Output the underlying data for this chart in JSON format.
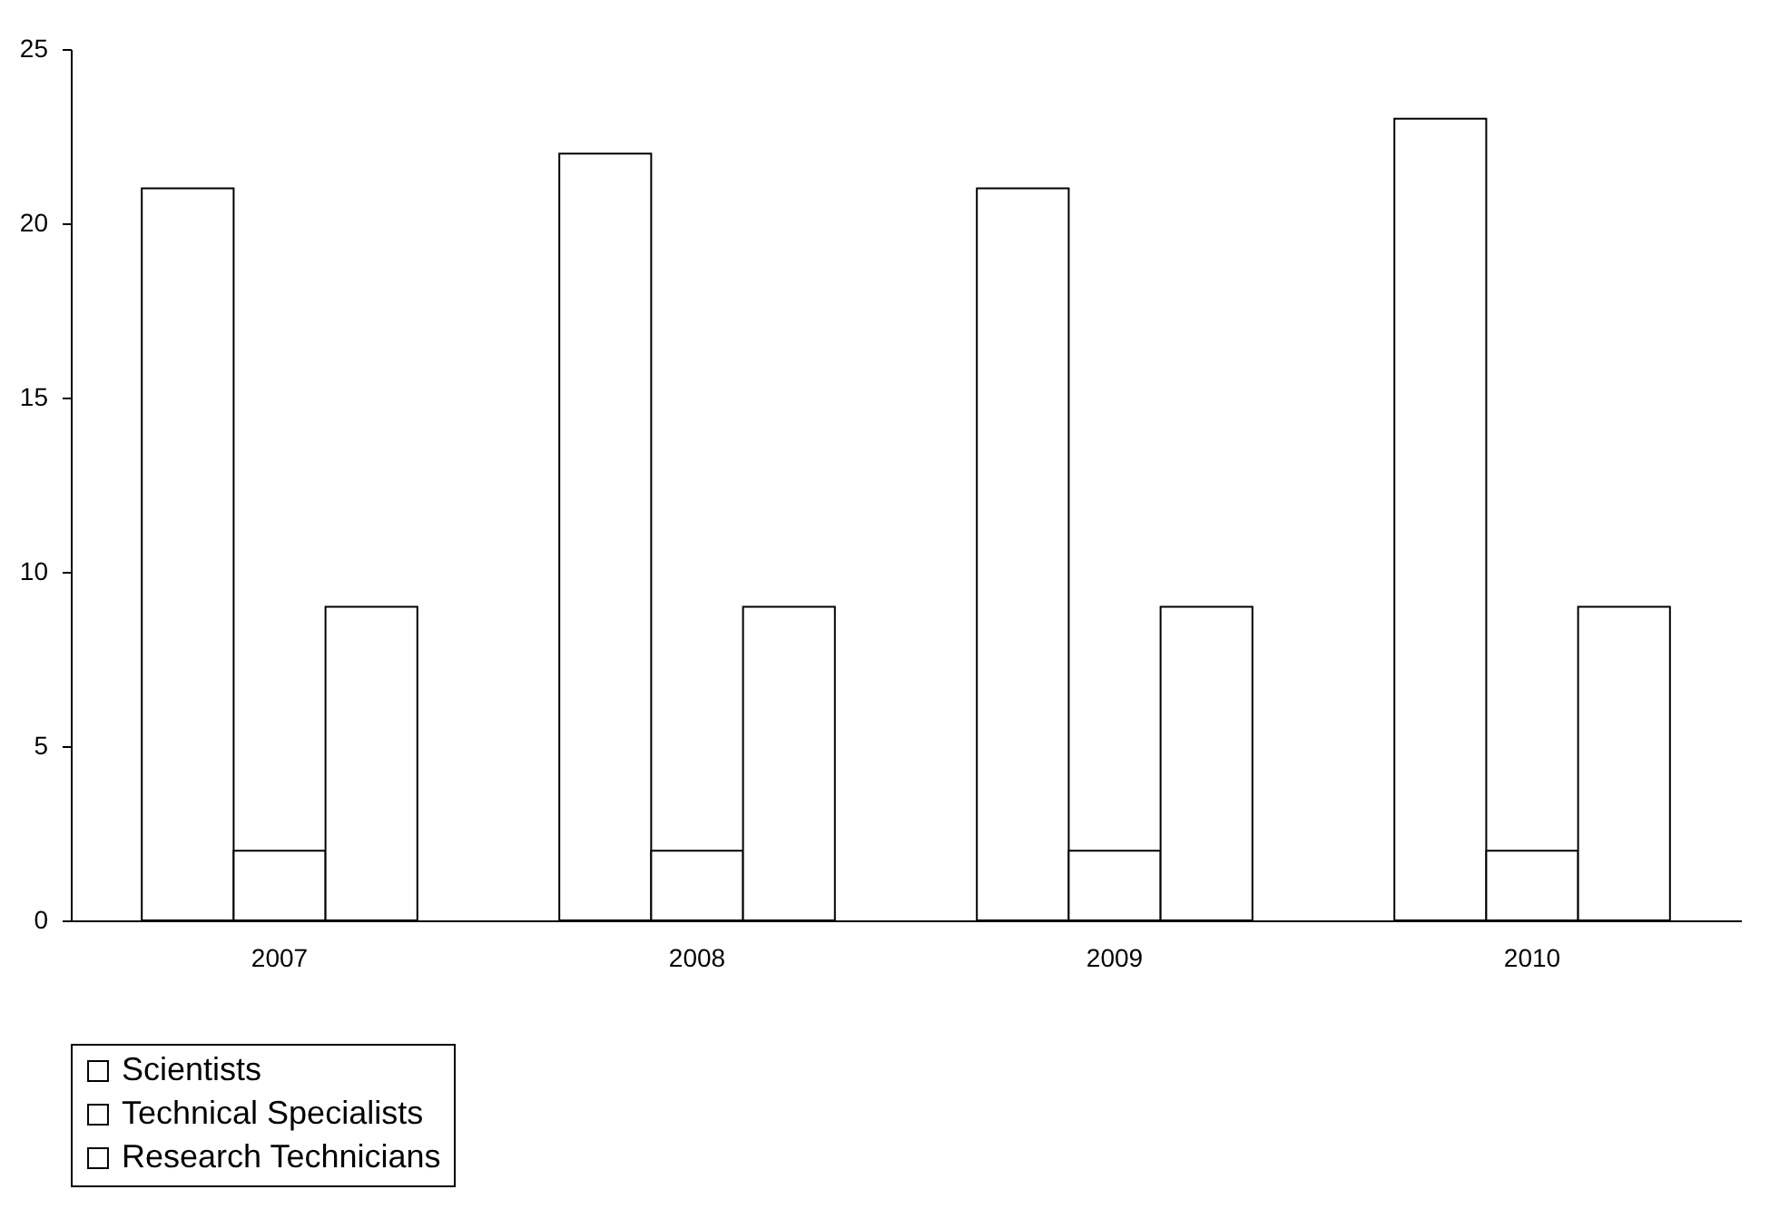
{
  "chart_data": {
    "type": "bar",
    "categories": [
      "2007",
      "2008",
      "2009",
      "2010"
    ],
    "series": [
      {
        "name": "Scientists",
        "color": "#ffffff",
        "values": [
          21,
          22,
          21,
          23
        ]
      },
      {
        "name": "Technical Specialists",
        "color": "#ffffff",
        "values": [
          2,
          2,
          2,
          2
        ]
      },
      {
        "name": "Research Technicians",
        "color": "#ffffff",
        "values": [
          9,
          9,
          9,
          9
        ]
      }
    ],
    "ylim": [
      0,
      25
    ],
    "yticks": [
      0,
      5,
      10,
      15,
      20,
      25
    ],
    "grid": false,
    "legend": "bottom"
  }
}
